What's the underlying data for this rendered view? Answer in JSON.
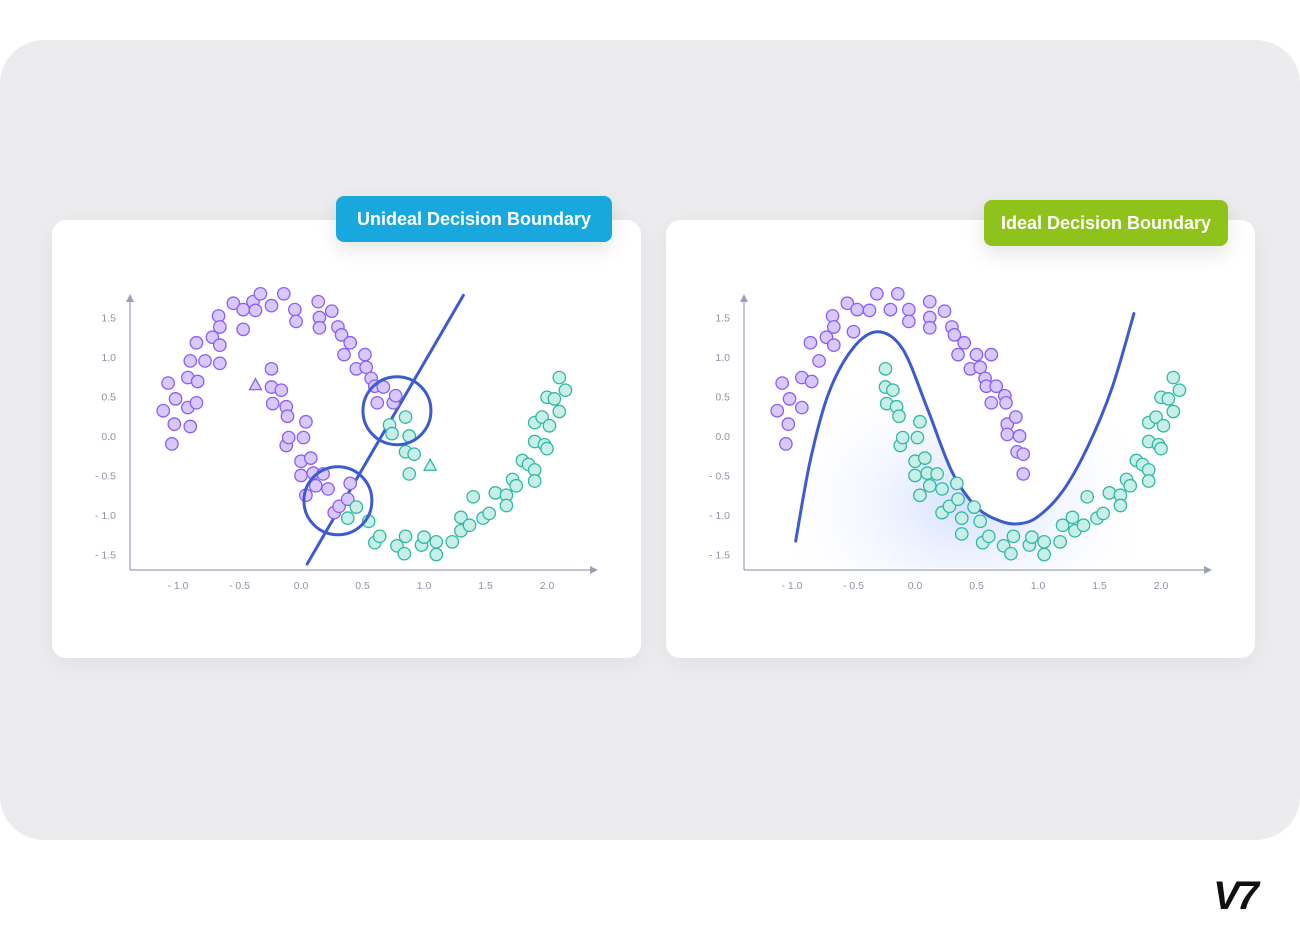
{
  "panels": [
    {
      "badge": "Unideal Decision Boundary",
      "badge_color": "#18a8de"
    },
    {
      "badge": "Ideal Decision Boundary",
      "badge_color": "#8fc21a"
    }
  ],
  "logo": "V7",
  "colors": {
    "class_a": "#8b5cf6",
    "class_b": "#2fb8a6",
    "boundary": "#3d5bd1",
    "axis": "#9aa0b4"
  },
  "chart_data": [
    {
      "type": "scatter",
      "title": "Unideal Decision Boundary",
      "xlabel": "",
      "ylabel": "",
      "xlim": [
        -1.4,
        2.4
      ],
      "ylim": [
        -1.7,
        1.8
      ],
      "xticks": [
        -1.0,
        -0.5,
        0.0,
        0.5,
        1.0,
        1.5,
        2.0
      ],
      "yticks": [
        1.5,
        1.0,
        0.5,
        0.0,
        -0.5,
        -1.0,
        -1.5
      ],
      "xtick_labels": [
        "- 1.0",
        "- 0.5",
        "0.0",
        "0.5",
        "1.0",
        "1.5",
        "2.0"
      ],
      "ytick_labels": [
        "1.5",
        "1.0",
        "0.5",
        "0.0",
        "- 0.5",
        "- 1.0",
        "- 1.5"
      ],
      "boundary": {
        "type": "line",
        "points": [
          [
            0.05,
            -1.62
          ],
          [
            1.32,
            1.78
          ]
        ]
      },
      "highlight_circles": [
        [
          0.78,
          0.32
        ],
        [
          0.3,
          -0.82
        ]
      ],
      "misclassified": [
        {
          "x": -0.37,
          "y": 0.65,
          "class": "A"
        },
        {
          "x": 1.05,
          "y": -0.37,
          "class": "B"
        }
      ],
      "series": [
        {
          "class": "A",
          "points": [
            [
              -1.12,
              0.32
            ],
            [
              -1.08,
              0.67
            ],
            [
              -1.05,
              -0.1
            ],
            [
              -1.03,
              0.15
            ],
            [
              -1.02,
              0.47
            ],
            [
              -0.92,
              0.36
            ],
            [
              -0.92,
              0.74
            ],
            [
              -0.9,
              0.95
            ],
            [
              -0.9,
              0.12
            ],
            [
              -0.85,
              0.42
            ],
            [
              -0.85,
              1.18
            ],
            [
              -0.84,
              0.69
            ],
            [
              -0.78,
              0.95
            ],
            [
              -0.72,
              1.25
            ],
            [
              -0.67,
              1.52
            ],
            [
              -0.66,
              0.92
            ],
            [
              -0.66,
              1.15
            ],
            [
              -0.66,
              1.38
            ],
            [
              -0.55,
              1.68
            ],
            [
              -0.47,
              1.6
            ],
            [
              -0.47,
              1.35
            ],
            [
              -0.39,
              1.7
            ],
            [
              -0.37,
              1.59
            ],
            [
              -0.33,
              1.8
            ],
            [
              -0.24,
              1.65
            ],
            [
              -0.14,
              1.8
            ],
            [
              -0.05,
              1.6
            ],
            [
              -0.04,
              1.45
            ],
            [
              0.14,
              1.7
            ],
            [
              0.15,
              1.5
            ],
            [
              0.15,
              1.37
            ],
            [
              0.25,
              1.58
            ],
            [
              0.3,
              1.38
            ],
            [
              0.33,
              1.28
            ],
            [
              0.35,
              1.03
            ],
            [
              0.4,
              1.18
            ],
            [
              0.45,
              0.85
            ],
            [
              0.52,
              1.03
            ],
            [
              0.53,
              0.87
            ],
            [
              0.57,
              0.73
            ],
            [
              0.6,
              0.63
            ],
            [
              0.62,
              0.42
            ],
            [
              0.67,
              0.62
            ],
            [
              0.75,
              0.42
            ],
            [
              0.77,
              0.51
            ],
            [
              -0.24,
              0.85
            ],
            [
              -0.24,
              0.62
            ],
            [
              -0.23,
              0.41
            ],
            [
              -0.16,
              0.58
            ],
            [
              -0.12,
              0.37
            ],
            [
              -0.11,
              0.25
            ],
            [
              -0.12,
              -0.12
            ],
            [
              -0.1,
              -0.02
            ],
            [
              0.0,
              -0.32
            ],
            [
              0.0,
              -0.5
            ],
            [
              0.02,
              -0.02
            ],
            [
              0.04,
              -0.75
            ],
            [
              0.04,
              0.18
            ],
            [
              0.08,
              -0.28
            ],
            [
              0.12,
              -0.63
            ],
            [
              0.1,
              -0.47
            ],
            [
              0.18,
              -0.48
            ],
            [
              0.22,
              -0.67
            ],
            [
              0.27,
              -0.97
            ],
            [
              0.31,
              -0.89
            ],
            [
              0.38,
              -0.8
            ],
            [
              0.4,
              -0.6
            ]
          ]
        },
        {
          "class": "B",
          "points": [
            [
              0.72,
              0.14
            ],
            [
              0.74,
              0.03
            ],
            [
              0.85,
              0.24
            ],
            [
              0.85,
              -0.2
            ],
            [
              0.88,
              0.0
            ],
            [
              0.88,
              -0.48
            ],
            [
              0.92,
              -0.23
            ],
            [
              0.38,
              -1.04
            ],
            [
              0.45,
              -0.9
            ],
            [
              0.55,
              -1.08
            ],
            [
              0.6,
              -1.35
            ],
            [
              0.64,
              -1.27
            ],
            [
              0.78,
              -1.39
            ],
            [
              0.84,
              -1.49
            ],
            [
              0.85,
              -1.27
            ],
            [
              0.98,
              -1.38
            ],
            [
              1.0,
              -1.28
            ],
            [
              1.1,
              -1.5
            ],
            [
              1.1,
              -1.34
            ],
            [
              1.23,
              -1.34
            ],
            [
              1.3,
              -1.03
            ],
            [
              1.3,
              -1.2
            ],
            [
              1.37,
              -1.13
            ],
            [
              1.4,
              -0.77
            ],
            [
              1.48,
              -1.04
            ],
            [
              1.53,
              -0.98
            ],
            [
              1.58,
              -0.72
            ],
            [
              1.67,
              -0.75
            ],
            [
              1.67,
              -0.88
            ],
            [
              1.72,
              -0.55
            ],
            [
              1.75,
              -0.63
            ],
            [
              1.8,
              -0.31
            ],
            [
              1.85,
              -0.36
            ],
            [
              1.9,
              -0.43
            ],
            [
              1.9,
              -0.57
            ],
            [
              1.9,
              0.17
            ],
            [
              1.9,
              -0.07
            ],
            [
              1.96,
              0.24
            ],
            [
              1.98,
              -0.11
            ],
            [
              2.0,
              -0.16
            ],
            [
              2.0,
              0.49
            ],
            [
              2.02,
              0.13
            ],
            [
              2.06,
              0.47
            ],
            [
              2.1,
              0.31
            ],
            [
              2.1,
              0.74
            ],
            [
              2.15,
              0.58
            ]
          ]
        }
      ]
    },
    {
      "type": "scatter",
      "title": "Ideal Decision Boundary",
      "xlabel": "",
      "ylabel": "",
      "xlim": [
        -1.4,
        2.4
      ],
      "ylim": [
        -1.7,
        1.8
      ],
      "xticks": [
        -1.0,
        -0.5,
        0.0,
        0.5,
        1.0,
        1.5,
        2.0
      ],
      "yticks": [
        1.5,
        1.0,
        0.5,
        0.0,
        -0.5,
        -1.0,
        -1.5
      ],
      "xtick_labels": [
        "- 1.0",
        "- 0.5",
        "0.0",
        "0.5",
        "1.0",
        "1.5",
        "2.0"
      ],
      "ytick_labels": [
        "1.5",
        "1.0",
        "0.5",
        "0.0",
        "- 0.5",
        "- 1.0",
        "- 1.5"
      ],
      "boundary": {
        "type": "curve",
        "points": [
          [
            -0.97,
            -1.33
          ],
          [
            -0.85,
            -0.3
          ],
          [
            -0.7,
            0.55
          ],
          [
            -0.5,
            1.12
          ],
          [
            -0.3,
            1.32
          ],
          [
            -0.1,
            1.1
          ],
          [
            0.1,
            0.35
          ],
          [
            0.3,
            -0.45
          ],
          [
            0.5,
            -0.9
          ],
          [
            0.7,
            -1.08
          ],
          [
            0.85,
            -1.11
          ],
          [
            1.0,
            -1.02
          ],
          [
            1.2,
            -0.7
          ],
          [
            1.4,
            -0.15
          ],
          [
            1.6,
            0.6
          ],
          [
            1.78,
            1.55
          ]
        ]
      },
      "series": [
        {
          "class": "A",
          "points": [
            [
              -1.12,
              0.32
            ],
            [
              -1.08,
              0.67
            ],
            [
              -1.05,
              -0.1
            ],
            [
              -1.02,
              0.47
            ],
            [
              -1.03,
              0.15
            ],
            [
              -0.92,
              0.36
            ],
            [
              -0.92,
              0.74
            ],
            [
              -0.85,
              1.18
            ],
            [
              -0.84,
              0.69
            ],
            [
              -0.78,
              0.95
            ],
            [
              -0.72,
              1.25
            ],
            [
              -0.67,
              1.52
            ],
            [
              -0.66,
              1.15
            ],
            [
              -0.66,
              1.38
            ],
            [
              -0.55,
              1.68
            ],
            [
              -0.47,
              1.6
            ],
            [
              -0.5,
              1.32
            ],
            [
              -0.37,
              1.59
            ],
            [
              -0.31,
              1.8
            ],
            [
              -0.2,
              1.6
            ],
            [
              -0.14,
              1.8
            ],
            [
              -0.05,
              1.6
            ],
            [
              -0.05,
              1.45
            ],
            [
              0.12,
              1.7
            ],
            [
              0.12,
              1.5
            ],
            [
              0.12,
              1.37
            ],
            [
              0.24,
              1.58
            ],
            [
              0.3,
              1.38
            ],
            [
              0.32,
              1.28
            ],
            [
              0.35,
              1.03
            ],
            [
              0.4,
              1.18
            ],
            [
              0.45,
              0.85
            ],
            [
              0.5,
              1.03
            ],
            [
              0.53,
              0.87
            ],
            [
              0.57,
              0.73
            ],
            [
              0.58,
              0.63
            ],
            [
              0.62,
              0.42
            ],
            [
              0.62,
              1.03
            ],
            [
              0.66,
              0.63
            ],
            [
              0.73,
              0.51
            ],
            [
              0.74,
              0.42
            ],
            [
              0.75,
              0.15
            ],
            [
              0.75,
              0.02
            ],
            [
              0.82,
              0.24
            ],
            [
              0.85,
              0.0
            ],
            [
              0.83,
              -0.2
            ],
            [
              0.88,
              -0.23
            ],
            [
              0.88,
              -0.48
            ]
          ]
        },
        {
          "class": "B",
          "points": [
            [
              -0.24,
              0.85
            ],
            [
              -0.24,
              0.62
            ],
            [
              -0.23,
              0.41
            ],
            [
              -0.18,
              0.58
            ],
            [
              -0.15,
              0.37
            ],
            [
              -0.13,
              0.25
            ],
            [
              -0.12,
              -0.12
            ],
            [
              -0.1,
              -0.02
            ],
            [
              0.0,
              -0.32
            ],
            [
              0.0,
              -0.5
            ],
            [
              0.02,
              -0.02
            ],
            [
              0.04,
              -0.75
            ],
            [
              0.04,
              0.18
            ],
            [
              0.08,
              -0.28
            ],
            [
              0.12,
              -0.63
            ],
            [
              0.1,
              -0.47
            ],
            [
              0.18,
              -0.48
            ],
            [
              0.22,
              -0.67
            ],
            [
              0.22,
              -0.97
            ],
            [
              0.28,
              -0.89
            ],
            [
              0.35,
              -0.8
            ],
            [
              0.34,
              -0.6
            ],
            [
              0.38,
              -1.04
            ],
            [
              0.38,
              -1.24
            ],
            [
              0.48,
              -0.9
            ],
            [
              0.53,
              -1.08
            ],
            [
              0.55,
              -1.35
            ],
            [
              0.6,
              -1.27
            ],
            [
              0.72,
              -1.39
            ],
            [
              0.78,
              -1.49
            ],
            [
              0.8,
              -1.27
            ],
            [
              0.93,
              -1.38
            ],
            [
              0.95,
              -1.28
            ],
            [
              1.05,
              -1.5
            ],
            [
              1.05,
              -1.34
            ],
            [
              1.18,
              -1.34
            ],
            [
              1.2,
              -1.13
            ],
            [
              1.28,
              -1.03
            ],
            [
              1.3,
              -1.2
            ],
            [
              1.37,
              -1.13
            ],
            [
              1.4,
              -0.77
            ],
            [
              1.48,
              -1.04
            ],
            [
              1.53,
              -0.98
            ],
            [
              1.58,
              -0.72
            ],
            [
              1.67,
              -0.75
            ],
            [
              1.67,
              -0.88
            ],
            [
              1.72,
              -0.55
            ],
            [
              1.75,
              -0.63
            ],
            [
              1.8,
              -0.31
            ],
            [
              1.85,
              -0.36
            ],
            [
              1.9,
              -0.43
            ],
            [
              1.9,
              -0.57
            ],
            [
              1.9,
              0.17
            ],
            [
              1.9,
              -0.07
            ],
            [
              1.96,
              0.24
            ],
            [
              1.98,
              -0.11
            ],
            [
              2.0,
              -0.16
            ],
            [
              2.0,
              0.49
            ],
            [
              2.02,
              0.13
            ],
            [
              2.06,
              0.47
            ],
            [
              2.1,
              0.31
            ],
            [
              2.1,
              0.74
            ],
            [
              2.15,
              0.58
            ]
          ]
        }
      ]
    }
  ]
}
